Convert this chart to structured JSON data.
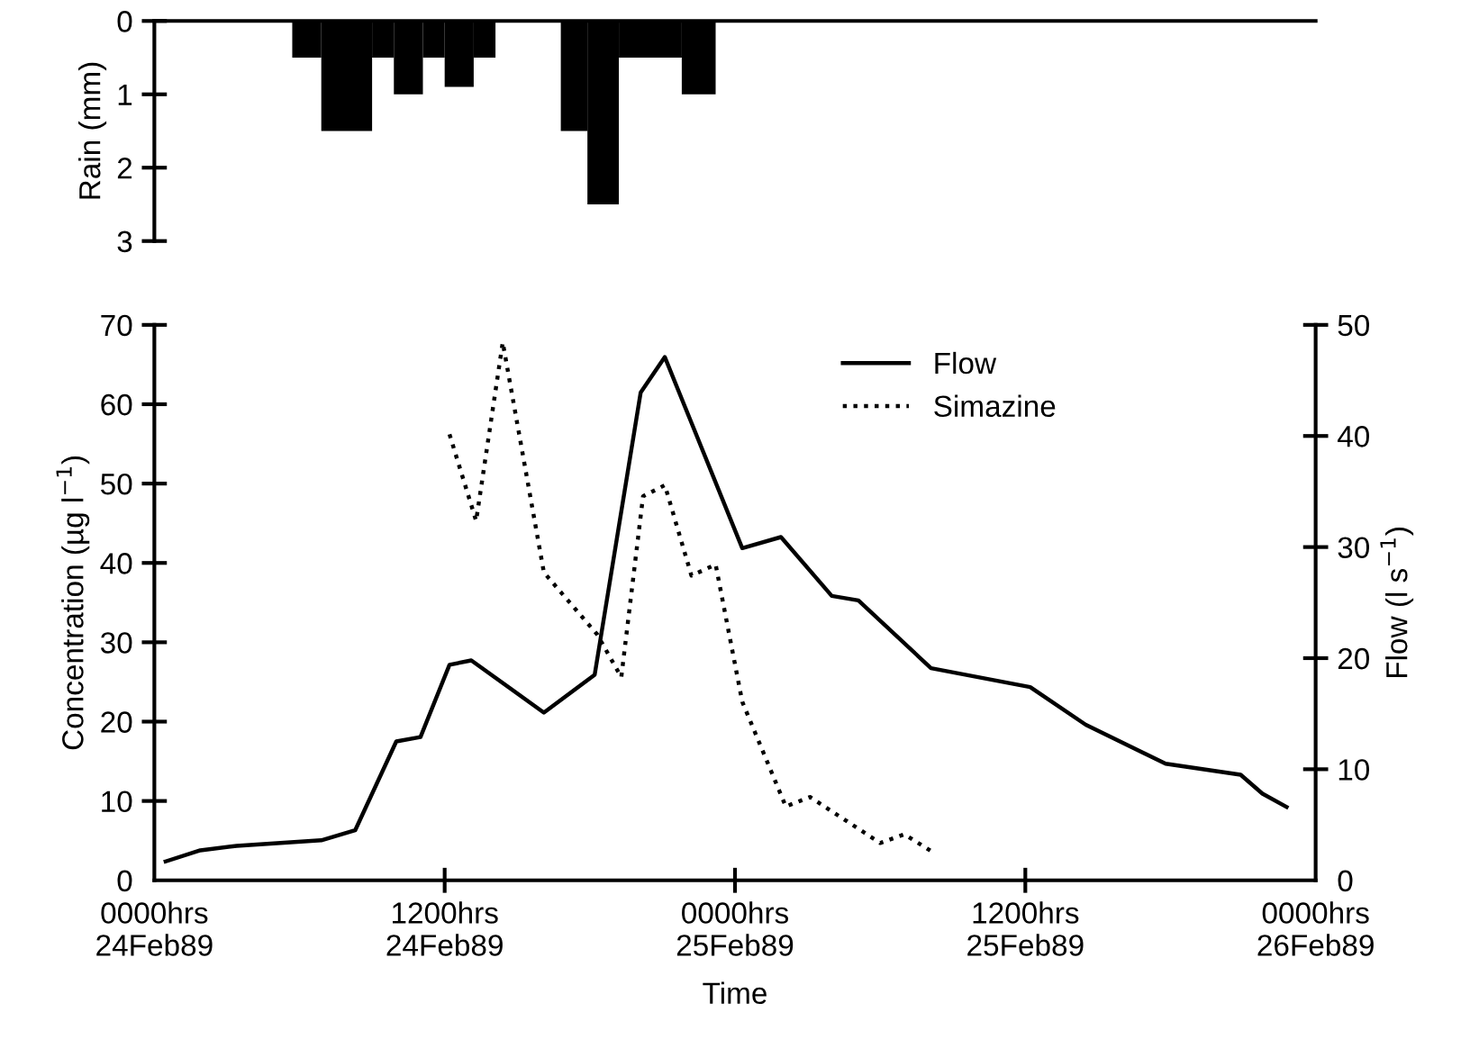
{
  "chart_data": [
    {
      "type": "histogram",
      "ylabel": "Rain (mm)",
      "bins": [
        "1989-02-24T05:42",
        "1989-02-24T06:54",
        "1989-02-24T09:00",
        "1989-02-24T09:54",
        "1989-02-24T11:06",
        "1989-02-24T12:00",
        "1989-02-24T13:12",
        "1989-02-24T14:06",
        "1989-02-24T16:48",
        "1989-02-24T17:54",
        "1989-02-24T19:12",
        "1989-02-24T21:48",
        "1989-02-24T23:12"
      ],
      "values": [
        0.5,
        1.5,
        0.5,
        1.0,
        0.5,
        0.9,
        0.5,
        0,
        1.5,
        2.5,
        0.5,
        1.0
      ],
      "color": "#000000",
      "xlim": [
        "1989-02-24T00:00",
        "1989-02-26T00:00"
      ],
      "ylim": [
        3,
        0
      ],
      "yticks": [
        0,
        1,
        2,
        3
      ],
      "tick_labels": "y",
      "grid": false
    },
    {
      "type": "line",
      "xlabel": "Time",
      "ylabel": "Concentration (µg l$^{−1}$)",
      "y2label": "Flow (l s$^{−1}$)",
      "xlim": [
        "1989-02-24T00:00",
        "1989-02-26T00:00"
      ],
      "xticks": [
        {
          "value": "1989-02-24T00:00",
          "label": "0000hrs\n24Feb89"
        },
        {
          "value": "1989-02-24T12:00",
          "label": "1200hrs\n24Feb89"
        },
        {
          "value": "1989-02-25T00:00",
          "label": "0000hrs\n25Feb89"
        },
        {
          "value": "1989-02-25T12:00",
          "label": "1200hrs\n25Feb89"
        },
        {
          "value": "1989-02-26T00:00",
          "label": "0000hrs\n26Feb89"
        }
      ],
      "ylim": [
        0,
        70
      ],
      "yticks": [
        0,
        10,
        20,
        30,
        40,
        50,
        60,
        70
      ],
      "y2lim": [
        0,
        50
      ],
      "y2ticks": [
        0,
        10,
        20,
        30,
        40,
        50
      ],
      "legend": "top right",
      "grid": false,
      "marker": "none",
      "series": [
        {
          "name": "Flow",
          "color": "#000000",
          "axis": "y2",
          "line_style": "solid",
          "x": [
            "1989-02-24T00:28",
            "1989-02-24T01:54",
            "1989-02-24T03:24",
            "1989-02-24T06:54",
            "1989-02-24T08:18",
            "1989-02-24T10:00",
            "1989-02-24T11:00",
            "1989-02-24T12:12",
            "1989-02-24T13:06",
            "1989-02-24T16:06",
            "1989-02-24T18:12",
            "1989-02-24T20:06",
            "1989-02-24T21:06",
            "1989-02-25T00:18",
            "1989-02-25T01:54",
            "1989-02-25T04:00",
            "1989-02-25T05:06",
            "1989-02-25T08:06",
            "1989-02-25T12:12",
            "1989-02-25T14:30",
            "1989-02-25T17:48",
            "1989-02-25T20:54",
            "1989-02-25T21:48",
            "1989-02-25T22:48"
          ],
          "values": [
            1.7,
            2.7,
            3.1,
            3.6,
            4.5,
            12.5,
            12.9,
            19.4,
            19.8,
            15.1,
            18.5,
            43.9,
            47.1,
            29.9,
            30.9,
            25.6,
            25.2,
            19.1,
            17.4,
            14.0,
            10.5,
            9.5,
            7.8,
            6.6
          ]
        },
        {
          "name": "Simazine",
          "color": "#000000",
          "axis": "y",
          "line_style": "dotted",
          "x": [
            "1989-02-24T12:12",
            "1989-02-24T13:18",
            "1989-02-24T14:24",
            "1989-02-24T16:06",
            "1989-02-24T18:18",
            "1989-02-24T19:18",
            "1989-02-24T20:12",
            "1989-02-24T21:06",
            "1989-02-24T22:12",
            "1989-02-24T23:12",
            "1989-02-25T00:18",
            "1989-02-25T02:06",
            "1989-02-25T03:06",
            "1989-02-25T06:00",
            "1989-02-25T07:00",
            "1989-02-25T08:12"
          ],
          "values": [
            56.2,
            45.3,
            67.8,
            38.8,
            31.0,
            25.6,
            48.4,
            49.8,
            38.4,
            39.8,
            22.5,
            9.3,
            10.5,
            4.7,
            5.8,
            3.5
          ]
        }
      ]
    }
  ]
}
